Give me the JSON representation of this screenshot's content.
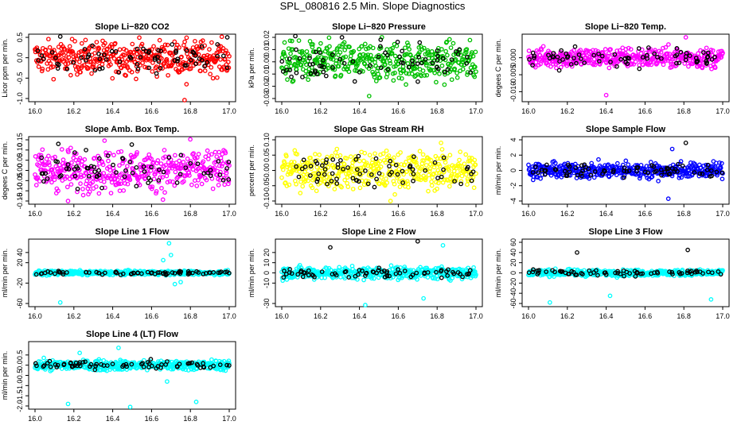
{
  "page_title": "SPL_080816  2.5 Min. Slope Diagnostics",
  "chart_data": [
    {
      "type": "scatter",
      "title": "Slope Li−820 CO2",
      "ylabel": "Licor ppm per min.",
      "color": "#ff0000",
      "xlim": [
        16.0,
        17.0
      ],
      "ylim": [
        -1.0,
        0.5
      ],
      "yticks": [
        "-1.0",
        "-0.5",
        "0.0",
        "0.5"
      ],
      "ytick_values": [
        -1.0,
        -0.5,
        0.0,
        0.5
      ],
      "spread": 0.2,
      "outliers": [
        {
          "x": 16.77,
          "y": -1.1
        },
        {
          "x": 16.78,
          "y": -0.65
        },
        {
          "x": 16.99,
          "y": 0.5
        },
        {
          "x": 16.13,
          "y": 0.52
        }
      ]
    },
    {
      "type": "scatter",
      "title": "Slope Li−820 Pressure",
      "ylabel": "kPa per min.",
      "color": "#00c000",
      "xlim": [
        16.0,
        17.0
      ],
      "ylim": [
        -0.03,
        0.02
      ],
      "yticks": [
        "-0.03",
        "-0.01",
        "0.01"
      ],
      "ytick_values": [
        -0.03,
        -0.01,
        0.01
      ],
      "extra_ticks": [
        {
          "label": "0.02",
          "value": 0.02
        },
        {
          "label": "0.00",
          "value": 0.0
        },
        {
          "label": "-0.02",
          "value": -0.02
        }
      ],
      "spread": 0.008,
      "outliers": [
        {
          "x": 16.45,
          "y": -0.028
        },
        {
          "x": 16.07,
          "y": 0.021
        },
        {
          "x": 16.31,
          "y": 0.02
        }
      ]
    },
    {
      "type": "scatter",
      "title": "Slope Li−820 Temp.",
      "ylabel": "degees C per min.",
      "color": "#ff00ff",
      "xlim": [
        16.0,
        17.0
      ],
      "ylim": [
        -0.012,
        0.006
      ],
      "yticks": [
        "-0.010",
        "0.000"
      ],
      "ytick_values": [
        -0.01,
        0.0
      ],
      "extra_ticks": [
        {
          "label": "-0.005",
          "value": -0.005
        }
      ],
      "spread": 0.0015,
      "outliers": [
        {
          "x": 16.4,
          "y": -0.011
        },
        {
          "x": 16.81,
          "y": 0.006
        }
      ]
    },
    {
      "type": "scatter",
      "title": "Slope Amb. Box Temp.",
      "ylabel": "degees C per min.",
      "color": "#ff00ff",
      "xlim": [
        16.0,
        17.0
      ],
      "ylim": [
        -0.15,
        0.15
      ],
      "yticks": [
        "-0.15",
        "-0.05",
        "0.05",
        "0.15"
      ],
      "ytick_values": [
        -0.15,
        -0.05,
        0.05,
        0.15
      ],
      "extra_ticks": [
        {
          "label": "0.10",
          "value": 0.1
        },
        {
          "label": "0.00",
          "value": 0.0
        },
        {
          "label": "-0.10",
          "value": -0.1
        }
      ],
      "spread": 0.05,
      "outliers": [
        {
          "x": 16.17,
          "y": -0.15
        },
        {
          "x": 16.12,
          "y": 0.13
        }
      ]
    },
    {
      "type": "scatter",
      "title": "Slope Gas Stream RH",
      "ylabel": "percent per min.",
      "color": "#ffff00",
      "xlim": [
        16.0,
        17.0
      ],
      "ylim": [
        -0.1,
        0.1
      ],
      "yticks": [
        "-0.10",
        "0.00",
        "0.10"
      ],
      "ytick_values": [
        -0.1,
        0.0,
        0.1
      ],
      "extra_ticks": [
        {
          "label": "-0.05",
          "value": -0.05
        },
        {
          "label": "0.05",
          "value": 0.05
        }
      ],
      "spread": 0.03,
      "outliers": [
        {
          "x": 16.56,
          "y": -0.1
        },
        {
          "x": 16.82,
          "y": 0.09
        }
      ]
    },
    {
      "type": "scatter",
      "title": "Slope Sample Flow",
      "ylabel": "ml/min per min.",
      "color": "#0000ff",
      "xlim": [
        16.0,
        17.0
      ],
      "ylim": [
        -4,
        4
      ],
      "yticks": [
        "-4",
        "-2",
        "0",
        "2",
        "4"
      ],
      "ytick_values": [
        -4,
        -2,
        0,
        2,
        4
      ],
      "spread": 0.5,
      "outliers": [
        {
          "x": 16.72,
          "y": -3.7
        },
        {
          "x": 16.81,
          "y": 3.6
        },
        {
          "x": 16.74,
          "y": 2.8
        }
      ]
    },
    {
      "type": "scatter",
      "title": "Slope Line 1 Flow",
      "ylabel": "ml/min per min.",
      "color": "#00ffff",
      "xlim": [
        16.0,
        17.0
      ],
      "ylim": [
        -60,
        60
      ],
      "yticks": [
        "-60",
        "-20",
        "20",
        "40"
      ],
      "ytick_values": [
        -60,
        -20,
        20,
        40
      ],
      "spread": 2,
      "outliers": [
        {
          "x": 16.13,
          "y": -58
        },
        {
          "x": 16.69,
          "y": 58
        },
        {
          "x": 16.7,
          "y": 35
        },
        {
          "x": 16.66,
          "y": 25
        },
        {
          "x": 16.72,
          "y": -22
        },
        {
          "x": 16.75,
          "y": -18
        }
      ]
    },
    {
      "type": "scatter",
      "title": "Slope Line 2 Flow",
      "ylabel": "ml/min per min.",
      "color": "#00ffff",
      "xlim": [
        16.0,
        17.0
      ],
      "ylim": [
        -30,
        30
      ],
      "yticks": [
        "-30",
        "-10",
        "0",
        "10",
        "20"
      ],
      "ytick_values": [
        -30,
        -10,
        0,
        10,
        20
      ],
      "spread": 3,
      "outliers": [
        {
          "x": 16.43,
          "y": -32
        },
        {
          "x": 16.7,
          "y": 31
        },
        {
          "x": 16.83,
          "y": 27
        },
        {
          "x": 16.25,
          "y": 25
        },
        {
          "x": 16.73,
          "y": -25
        }
      ]
    },
    {
      "type": "scatter",
      "title": "Slope Line 3 Flow",
      "ylabel": "ml/min per min.",
      "color": "#00ffff",
      "xlim": [
        16.0,
        17.0
      ],
      "ylim": [
        -60,
        60
      ],
      "yticks": [
        "-60",
        "-20",
        "20",
        "60"
      ],
      "ytick_values": [
        -60,
        -20,
        20,
        60
      ],
      "extra_ticks": [
        {
          "label": "-40",
          "value": -40
        },
        {
          "label": "0",
          "value": 0
        },
        {
          "label": "40",
          "value": 40
        }
      ],
      "spread": 3,
      "outliers": [
        {
          "x": 16.11,
          "y": -58
        },
        {
          "x": 16.42,
          "y": -45
        },
        {
          "x": 16.82,
          "y": 45
        },
        {
          "x": 16.94,
          "y": -52
        },
        {
          "x": 16.25,
          "y": 40
        }
      ]
    },
    {
      "type": "scatter",
      "title": "Slope Line 4 (LT) Flow",
      "ylabel": "ml/min per min.",
      "color": "#00ffff",
      "xlim": [
        16.0,
        17.0
      ],
      "ylim": [
        -2.0,
        1.0
      ],
      "yticks": [
        "-2.0",
        "-1.0",
        "0.0"
      ],
      "ytick_values": [
        -2.0,
        -1.0,
        0.0
      ],
      "extra_ticks": [
        {
          "label": "-1.5",
          "value": -1.5
        },
        {
          "label": "-0.5",
          "value": -0.5
        },
        {
          "label": "0.5",
          "value": 0.5
        }
      ],
      "spread": 0.12,
      "outliers": [
        {
          "x": 16.17,
          "y": -1.9
        },
        {
          "x": 16.49,
          "y": -2.05
        },
        {
          "x": 16.83,
          "y": -1.8
        },
        {
          "x": 16.68,
          "y": -0.8
        },
        {
          "x": 16.43,
          "y": 0.85
        },
        {
          "x": 16.23,
          "y": 0.6
        }
      ]
    }
  ],
  "shared_x_ticks": [
    "16.0",
    "16.2",
    "16.4",
    "16.6",
    "16.8",
    "17.0"
  ],
  "shared_x_values": [
    16.0,
    16.2,
    16.4,
    16.6,
    16.8,
    17.0
  ]
}
